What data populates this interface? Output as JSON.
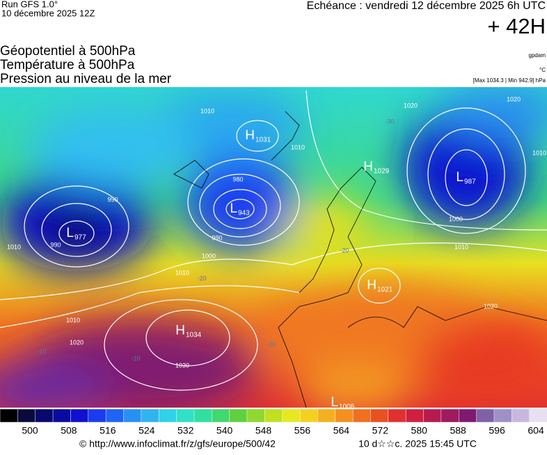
{
  "header": {
    "run": "Run GFS 1.0°",
    "date": "10 décembre 2025 12Z",
    "echeance": "Echéance : vendredi 12 décembre 2025 6h UTC",
    "lead": "+ 42H"
  },
  "titles": [
    "Géopotentiel à 500hPa",
    "Température à 500hPa",
    "Pression au niveau de la mer"
  ],
  "units": [
    "gpdam",
    "°C",
    "[Max 1034.3 | Min 942.9] hPa"
  ],
  "centers": [
    {
      "label": "H",
      "value": 1031
    },
    {
      "label": "L",
      "value": 943
    },
    {
      "label": "L",
      "value": 977
    },
    {
      "label": "H",
      "value": 1029
    },
    {
      "label": "L",
      "value": 987
    },
    {
      "label": "H",
      "value": 1034
    },
    {
      "label": "H",
      "value": 1021
    },
    {
      "label": "L",
      "value": 1008
    }
  ],
  "isobar_labels": [
    1010,
    980,
    990,
    1000,
    1010,
    990,
    990,
    1010,
    1010,
    1020,
    1030,
    1010,
    1000,
    1010,
    1020,
    1010,
    1020,
    1020
  ],
  "temperature_labels": [
    -20,
    -10,
    -10,
    -20,
    -20,
    -30
  ],
  "colorbar": {
    "ticks": [
      500,
      508,
      516,
      524,
      532,
      540,
      548,
      556,
      564,
      572,
      580,
      588,
      596,
      604
    ],
    "colors": [
      "#000000",
      "#0a0a40",
      "#08086e",
      "#0a0aa0",
      "#1010d0",
      "#1a3cf0",
      "#1e64f5",
      "#2890f5",
      "#30b4f0",
      "#30d2e8",
      "#30e0c8",
      "#30e0a0",
      "#40d870",
      "#60d040",
      "#90d830",
      "#c0e020",
      "#e8e820",
      "#f5d020",
      "#f5b020",
      "#f59020",
      "#f07020",
      "#e85020",
      "#e03030",
      "#d02040",
      "#b81a50",
      "#a01a60",
      "#801a70",
      "#8060a8",
      "#a090c8",
      "#c8b8e0",
      "#e8e0f0"
    ]
  },
  "footer": {
    "url": "© http://www.infoclimat.fr/z/gfs/europe/500/42",
    "time": "10 d☆☆c. 2025 15:45 UTC"
  }
}
